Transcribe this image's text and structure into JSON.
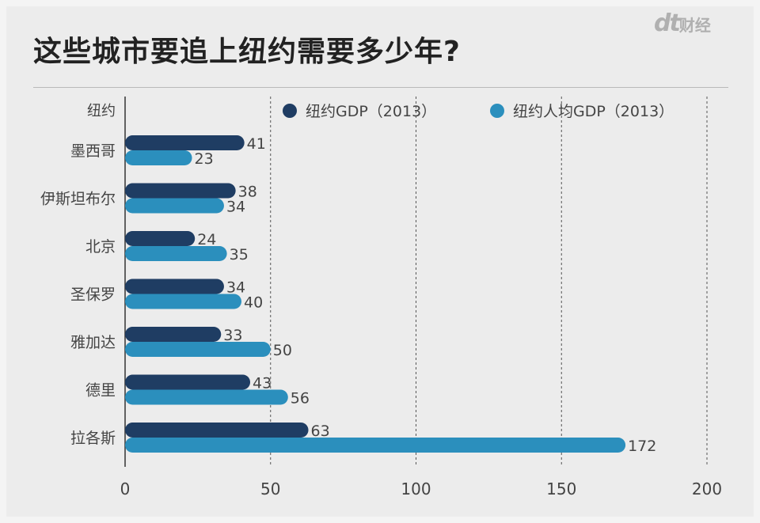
{
  "header": {
    "title": "这些城市要追上纽约需要多少年?",
    "logo_dt": "dt",
    "logo_text": "财经"
  },
  "colors": {
    "series1": "#1f3d63",
    "series2": "#2b8fbd",
    "label": "#444444",
    "grid": "#555555"
  },
  "chart_data": {
    "type": "bar",
    "orientation": "horizontal",
    "title": "这些城市要追上纽约需要多少年?",
    "y_header": "纽约",
    "categories": [
      "墨西哥",
      "伊斯坦布尔",
      "北京",
      "圣保罗",
      "雅加达",
      "德里",
      "拉各斯"
    ],
    "series": [
      {
        "name": "纽约GDP（2013）",
        "values": [
          41,
          38,
          24,
          34,
          33,
          43,
          63
        ]
      },
      {
        "name": "纽约人均GDP（2013）",
        "values": [
          23,
          34,
          35,
          40,
          50,
          56,
          172
        ]
      }
    ],
    "xlim": [
      0,
      200
    ],
    "xticks": [
      0,
      50,
      100,
      150,
      200
    ],
    "grid": "vertical dashed",
    "legend": "top"
  }
}
